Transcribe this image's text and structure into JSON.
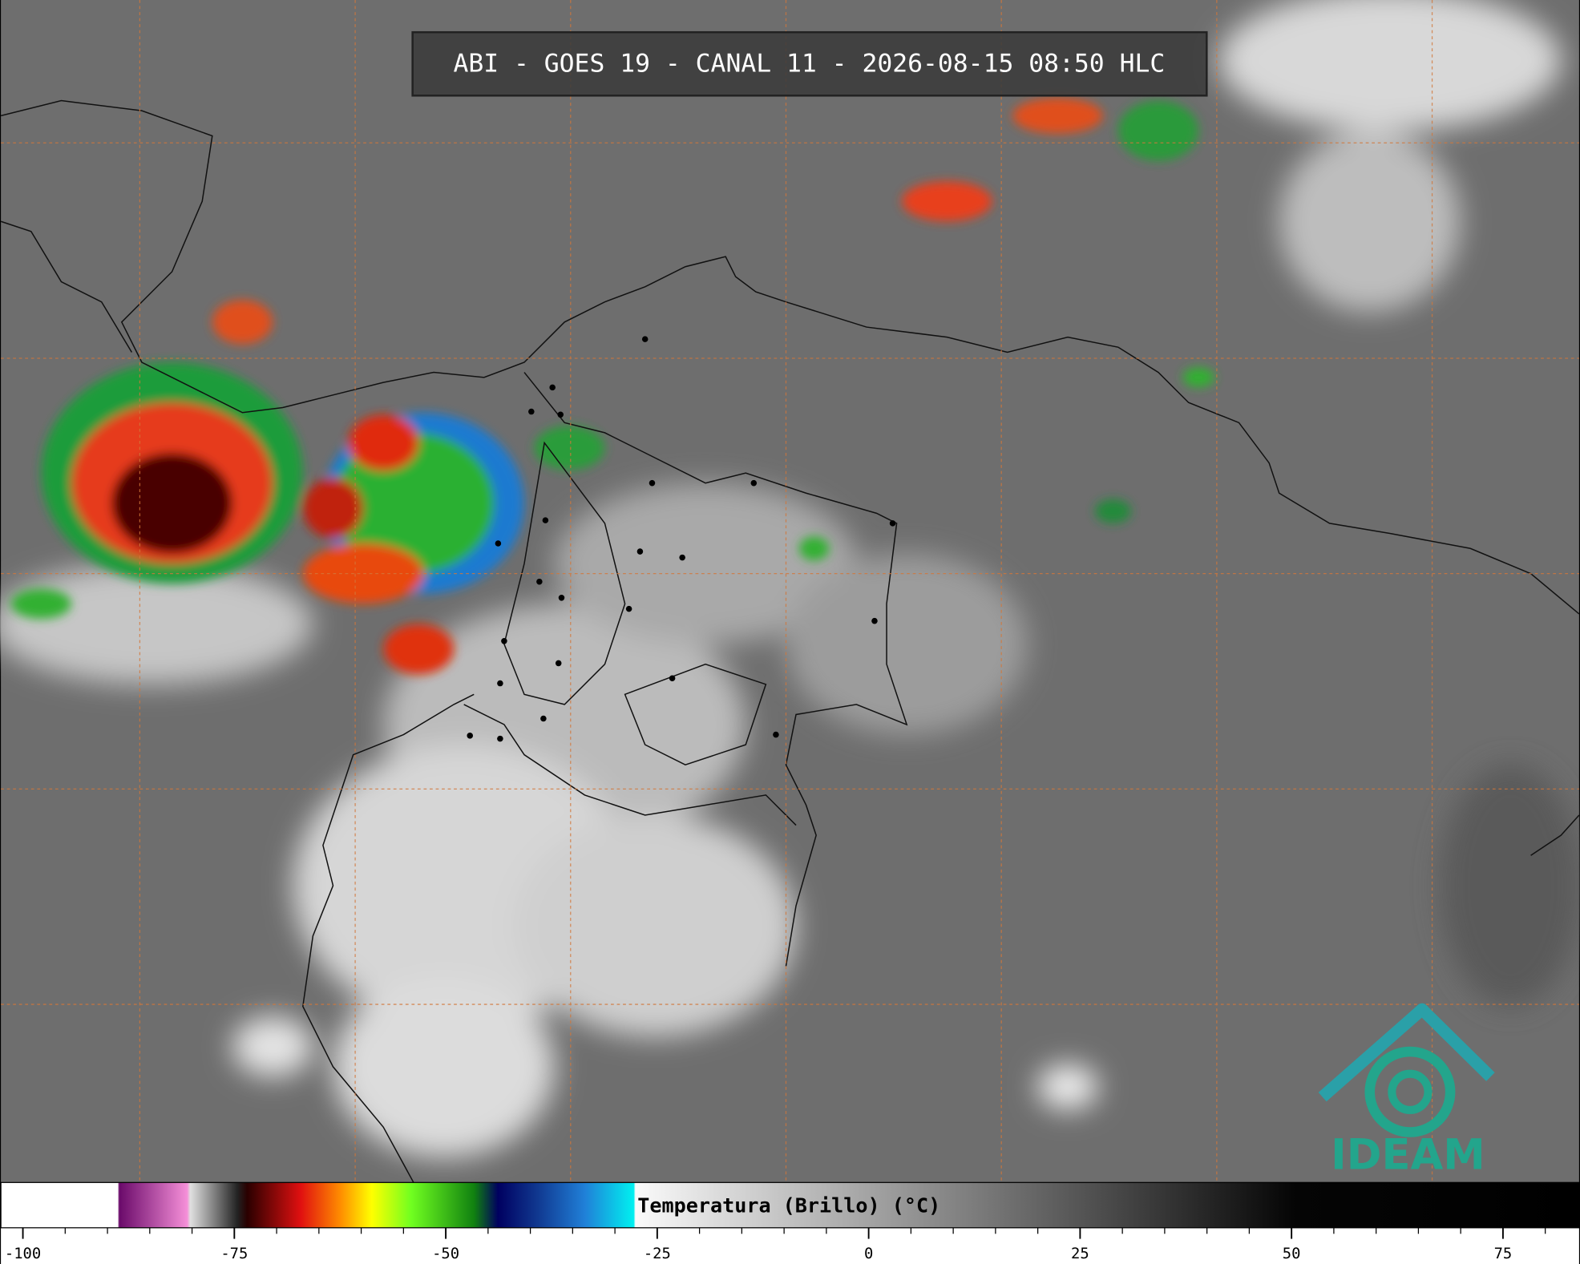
{
  "title": "ABI - GOES 19 - CANAL 11 - 2026-08-15 08:50 HLC",
  "colorbar": {
    "label": "Temperatura (Brillo) (°C)",
    "range": [
      -102.6,
      84
    ],
    "ticks": [
      -100,
      -75,
      -50,
      -25,
      0,
      25,
      50,
      75
    ]
  },
  "logo": "IDEAM"
}
